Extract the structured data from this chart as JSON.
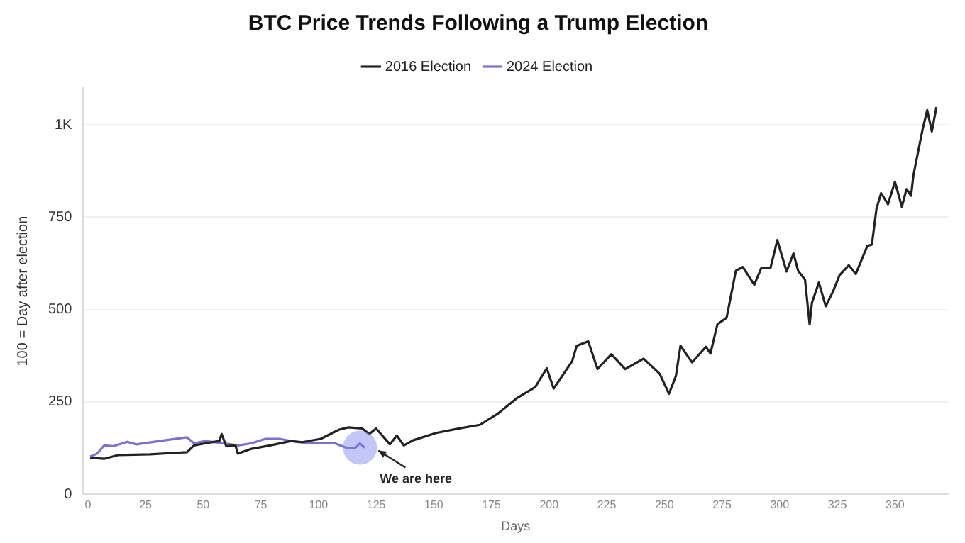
{
  "chart_data": {
    "type": "line",
    "title": "BTC Price Trends Following a Trump Election",
    "xlabel": "Days",
    "ylabel": "100 = Day after election",
    "series": [
      {
        "name": "2016 Election",
        "color": "#222222",
        "x": [
          1,
          7,
          13,
          27,
          43,
          46,
          51,
          57,
          58,
          60,
          64,
          65,
          71,
          79,
          88,
          93,
          101,
          109,
          113,
          119,
          122,
          125,
          131,
          134,
          137,
          141,
          151,
          161,
          170,
          178,
          186,
          194,
          199,
          202,
          210,
          212,
          217,
          221,
          227,
          233,
          241,
          248,
          252,
          255,
          257,
          262,
          268,
          270,
          273,
          277,
          281,
          284,
          289,
          292,
          296,
          299,
          303,
          306,
          308,
          311,
          313,
          314,
          317,
          320,
          323,
          326,
          330,
          333,
          338,
          340,
          342,
          344,
          347,
          350,
          353,
          355,
          357,
          358,
          362,
          364,
          366,
          368
        ],
        "values": [
          99,
          96,
          106,
          108,
          114,
          132,
          138,
          144,
          163,
          130,
          132,
          110,
          123,
          132,
          144,
          141,
          150,
          175,
          181,
          178,
          163,
          178,
          135,
          159,
          132,
          146,
          166,
          178,
          188,
          219,
          260,
          290,
          341,
          286,
          360,
          402,
          414,
          339,
          379,
          339,
          367,
          326,
          272,
          320,
          402,
          357,
          399,
          381,
          460,
          478,
          605,
          615,
          567,
          612,
          612,
          688,
          603,
          652,
          605,
          581,
          460,
          518,
          573,
          509,
          547,
          593,
          620,
          596,
          672,
          676,
          773,
          815,
          785,
          846,
          778,
          826,
          808,
          863,
          988,
          1040,
          982,
          1048
        ]
      },
      {
        "name": "2024 Election",
        "color": "#7b6fd0",
        "x": [
          1,
          4,
          7,
          11,
          17,
          21,
          31,
          43,
          46,
          51,
          59,
          65,
          71,
          77,
          83,
          91,
          99,
          107,
          112,
          116,
          118,
          120
        ],
        "values": [
          102,
          110,
          132,
          130,
          142,
          135,
          144,
          154,
          138,
          144,
          138,
          132,
          138,
          150,
          150,
          141,
          138,
          138,
          126,
          126,
          138,
          126
        ]
      }
    ],
    "xlim": [
      -2,
      373
    ],
    "xticks": [
      0,
      25,
      50,
      75,
      100,
      125,
      150,
      175,
      200,
      225,
      250,
      275,
      300,
      325,
      350
    ],
    "ylim": [
      0,
      1100
    ],
    "yticks": [
      0,
      250,
      500,
      750,
      {
        "value": 1000,
        "label": "1K"
      }
    ],
    "grid": "y",
    "legend": "top",
    "marker": "none",
    "line_style": "solid",
    "annotations": [
      {
        "text": "We are here",
        "x": 118,
        "y": 126
      }
    ]
  }
}
